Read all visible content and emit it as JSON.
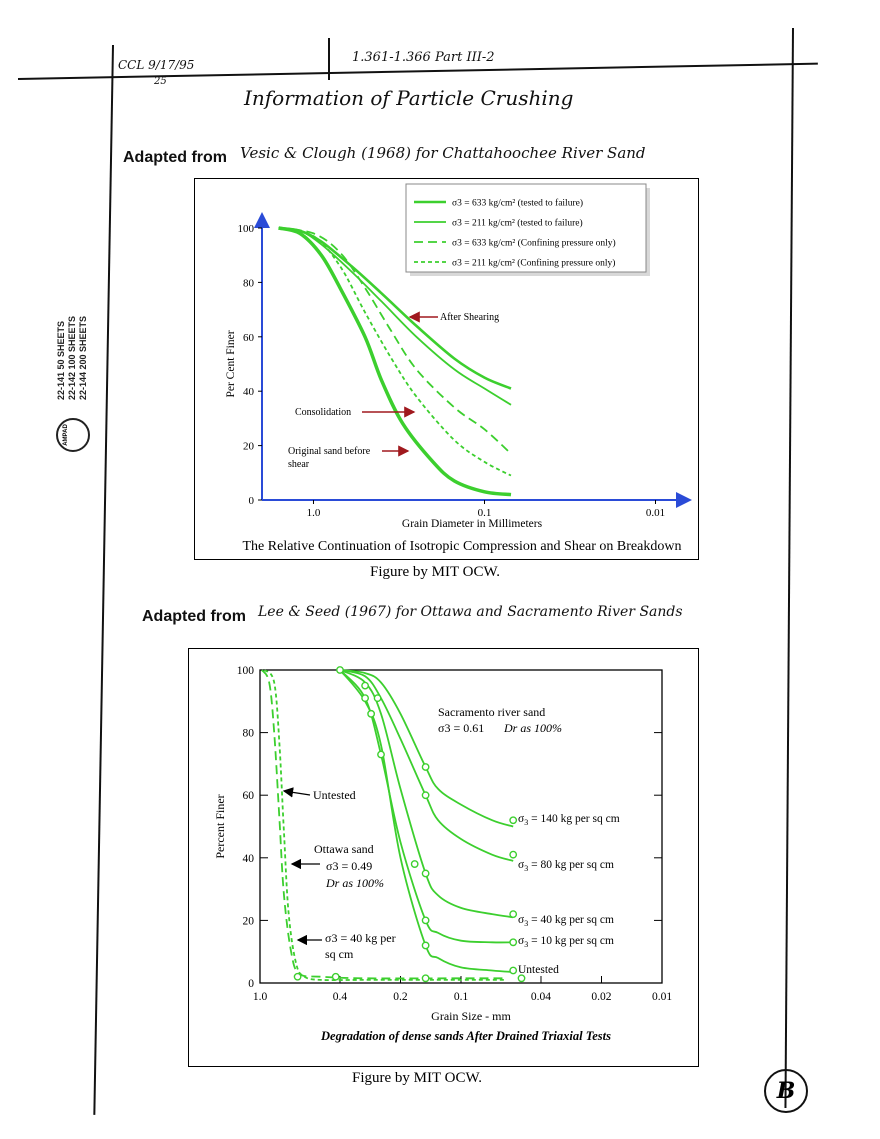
{
  "page": {
    "header_left": "CCL 9/17/95",
    "header_left_sub": "25",
    "header_center": "1.361-1.366  Part III-2",
    "title": "Information of Particle Crushing",
    "section1_prefix": "Adapted from",
    "section1_hand": "Vesic & Clough (1968) for Chattahoochee River Sand",
    "section2_prefix": "Adapted from",
    "section2_hand": "Lee & Seed (1967) for Ottawa and Sacramento River Sands",
    "credit1": "Figure by MIT OCW.",
    "credit2": "Figure by MIT OCW.",
    "corner_mark": "B",
    "pad_brand": "AMPAD",
    "pad_lines": [
      "22-141    50 SHEETS",
      "22-142   100 SHEETS",
      "22-144   200 SHEETS"
    ]
  },
  "chart_data": [
    {
      "type": "line",
      "title": "",
      "caption": "The Relative Continuation of Isotropic Compression and Shear on Breakdown",
      "xlabel": "Grain Diameter in Millimeters",
      "ylabel": "Per Cent Finer",
      "xscale": "log",
      "xaxis_direction": "decreasing",
      "xlim": [
        2.0,
        0.007
      ],
      "ylim": [
        0,
        100
      ],
      "xticks": [
        {
          "value": 1.0,
          "label": "1.0"
        },
        {
          "value": 0.1,
          "label": "0.1"
        },
        {
          "value": 0.01,
          "label": "0.01"
        }
      ],
      "yticks": [
        0,
        20,
        40,
        60,
        80,
        100
      ],
      "legend_position": "top-right",
      "color": "#3ccf2e",
      "series": [
        {
          "name": "σ3 = 633 kg/cm² (tested to failure)",
          "style": "solid-thick",
          "points": [
            [
              1.6,
              100
            ],
            [
              1.2,
              99
            ],
            [
              0.9,
              95
            ],
            [
              0.6,
              86
            ],
            [
              0.4,
              76
            ],
            [
              0.25,
              64
            ],
            [
              0.15,
              52
            ],
            [
              0.1,
              45
            ],
            [
              0.07,
              41
            ]
          ]
        },
        {
          "name": "σ3 = 211 kg/cm² (tested to failure)",
          "style": "solid",
          "points": [
            [
              1.6,
              100
            ],
            [
              1.2,
              99
            ],
            [
              0.9,
              94
            ],
            [
              0.6,
              84
            ],
            [
              0.4,
              73
            ],
            [
              0.25,
              60
            ],
            [
              0.15,
              48
            ],
            [
              0.1,
              41
            ],
            [
              0.07,
              35
            ]
          ]
        },
        {
          "name": "σ3 = 633 kg/cm² (Confining pressure only)",
          "style": "dashed",
          "points": [
            [
              1.6,
              100
            ],
            [
              1.0,
              98
            ],
            [
              0.7,
              91
            ],
            [
              0.5,
              78
            ],
            [
              0.35,
              62
            ],
            [
              0.25,
              48
            ],
            [
              0.15,
              34
            ],
            [
              0.1,
              26
            ],
            [
              0.07,
              17
            ]
          ]
        },
        {
          "name": "σ3 = 211 kg/cm² (Confining pressure only)",
          "style": "dotted",
          "points": [
            [
              1.6,
              100
            ],
            [
              1.0,
              97
            ],
            [
              0.7,
              86
            ],
            [
              0.5,
              69
            ],
            [
              0.35,
              52
            ],
            [
              0.25,
              38
            ],
            [
              0.15,
              22
            ],
            [
              0.1,
              14
            ],
            [
              0.07,
              9
            ]
          ]
        },
        {
          "name": "",
          "style": "solid-thicker",
          "points": [
            [
              1.6,
              100
            ],
            [
              1.2,
              98
            ],
            [
              0.9,
              90
            ],
            [
              0.7,
              78
            ],
            [
              0.5,
              60
            ],
            [
              0.4,
              44
            ],
            [
              0.3,
              28
            ],
            [
              0.2,
              14
            ],
            [
              0.15,
              7
            ],
            [
              0.1,
              3
            ],
            [
              0.07,
              2
            ]
          ]
        }
      ],
      "annotations": [
        {
          "text": "After Shearing",
          "x": 0.3,
          "y": 70
        },
        {
          "text": "Consolidation",
          "x": 0.3,
          "y": 34
        },
        {
          "text": "Original sand before shear",
          "x": 0.35,
          "y": 19
        }
      ]
    },
    {
      "type": "line",
      "title": "",
      "caption": "Degradation of dense sands After Drained Triaxial Tests",
      "xlabel": "Grain Size - mm",
      "ylabel": "Percent Finer",
      "xscale": "log",
      "xaxis_direction": "decreasing",
      "xlim": [
        1.0,
        0.01
      ],
      "ylim": [
        0,
        100
      ],
      "xticks": [
        {
          "value": 1.0,
          "label": "1.0"
        },
        {
          "value": 0.4,
          "label": "0.4"
        },
        {
          "value": 0.2,
          "label": "0.2"
        },
        {
          "value": 0.1,
          "label": "0.1"
        },
        {
          "value": 0.04,
          "label": "0.04"
        },
        {
          "value": 0.02,
          "label": "0.02"
        },
        {
          "value": 0.01,
          "label": "0.01"
        }
      ],
      "yticks": [
        0,
        20,
        40,
        60,
        80,
        100
      ],
      "color": "#3ccf2e",
      "series": [
        {
          "name": "σ3 = 140 kg per sq cm",
          "style": "solid",
          "points": [
            [
              0.4,
              100
            ],
            [
              0.3,
              99
            ],
            [
              0.25,
              96
            ],
            [
              0.2,
              86
            ],
            [
              0.15,
              69
            ],
            [
              0.13,
              62
            ],
            [
              0.1,
              57
            ],
            [
              0.07,
              52
            ],
            [
              0.055,
              50
            ]
          ]
        },
        {
          "name": "σ3 = 80 kg per sq cm",
          "style": "solid",
          "points": [
            [
              0.4,
              100
            ],
            [
              0.3,
              98
            ],
            [
              0.25,
              91
            ],
            [
              0.2,
              78
            ],
            [
              0.15,
              60
            ],
            [
              0.13,
              52
            ],
            [
              0.1,
              46
            ],
            [
              0.07,
              41
            ],
            [
              0.055,
              39
            ]
          ]
        },
        {
          "name": "σ3 = 40 kg per sq cm",
          "style": "solid",
          "points": [
            [
              0.4,
              100
            ],
            [
              0.3,
              96
            ],
            [
              0.25,
              86
            ],
            [
              0.2,
              62
            ],
            [
              0.15,
              35
            ],
            [
              0.13,
              28
            ],
            [
              0.1,
              24
            ],
            [
              0.07,
              22
            ],
            [
              0.055,
              21
            ]
          ]
        },
        {
          "name": "σ3 = 10 kg per sq cm",
          "style": "solid",
          "points": [
            [
              0.4,
              100
            ],
            [
              0.3,
              91
            ],
            [
              0.25,
              73
            ],
            [
              0.2,
              45
            ],
            [
              0.15,
              20
            ],
            [
              0.13,
              16
            ],
            [
              0.1,
              13.5
            ],
            [
              0.07,
              13
            ],
            [
              0.055,
              13
            ]
          ]
        },
        {
          "name": "Untested",
          "style": "solid",
          "points": [
            [
              0.4,
              100
            ],
            [
              0.3,
              90
            ],
            [
              0.25,
              76
            ],
            [
              0.2,
              40
            ],
            [
              0.15,
              12
            ],
            [
              0.13,
              8
            ],
            [
              0.1,
              5
            ],
            [
              0.07,
              4
            ],
            [
              0.055,
              3.5
            ]
          ]
        },
        {
          "name": "Untested (Ottawa)",
          "style": "dashed",
          "points": [
            [
              0.98,
              100
            ],
            [
              0.9,
              96
            ],
            [
              0.85,
              80
            ],
            [
              0.8,
              52
            ],
            [
              0.76,
              28
            ],
            [
              0.7,
              10
            ],
            [
              0.64,
              3
            ],
            [
              0.5,
              2
            ],
            [
              0.3,
              1.5
            ],
            [
              0.1,
              1.5
            ],
            [
              0.06,
              1.5
            ]
          ]
        },
        {
          "name": "σ3 = 40 kg per sq cm (Ottawa)",
          "style": "dotted",
          "points": [
            [
              0.95,
              100
            ],
            [
              0.85,
              96
            ],
            [
              0.8,
              76
            ],
            [
              0.76,
              48
            ],
            [
              0.72,
              22
            ],
            [
              0.66,
              6
            ],
            [
              0.6,
              2
            ],
            [
              0.5,
              1
            ],
            [
              0.3,
              1
            ],
            [
              0.1,
              1
            ],
            [
              0.06,
              1
            ]
          ]
        }
      ],
      "markers": [
        {
          "x": 0.4,
          "y": 100
        },
        {
          "x": 0.3,
          "y": 95
        },
        {
          "x": 0.26,
          "y": 91
        },
        {
          "x": 0.3,
          "y": 91
        },
        {
          "x": 0.28,
          "y": 86
        },
        {
          "x": 0.25,
          "y": 73
        },
        {
          "x": 0.15,
          "y": 69
        },
        {
          "x": 0.15,
          "y": 60
        },
        {
          "x": 0.17,
          "y": 38
        },
        {
          "x": 0.15,
          "y": 35
        },
        {
          "x": 0.15,
          "y": 20
        },
        {
          "x": 0.15,
          "y": 12
        },
        {
          "x": 0.055,
          "y": 52
        },
        {
          "x": 0.055,
          "y": 41
        },
        {
          "x": 0.055,
          "y": 22
        },
        {
          "x": 0.055,
          "y": 13
        },
        {
          "x": 0.055,
          "y": 4
        },
        {
          "x": 0.65,
          "y": 2
        },
        {
          "x": 0.42,
          "y": 2
        },
        {
          "x": 0.15,
          "y": 1.5
        },
        {
          "x": 0.05,
          "y": 1.5
        }
      ],
      "annotations": [
        {
          "text": "Sacramento river sand",
          "sub": "σ3 = 0.61",
          "extra": "Dr as 100%"
        },
        {
          "text": "Untested",
          "x": 0.8,
          "y": 61
        },
        {
          "text": "Ottawa sand",
          "sub": "σ3 = 0.49",
          "extra": "Dr as 100%"
        },
        {
          "text": "σ3 = 40 kg per",
          "sub": "sq cm"
        }
      ]
    }
  ]
}
